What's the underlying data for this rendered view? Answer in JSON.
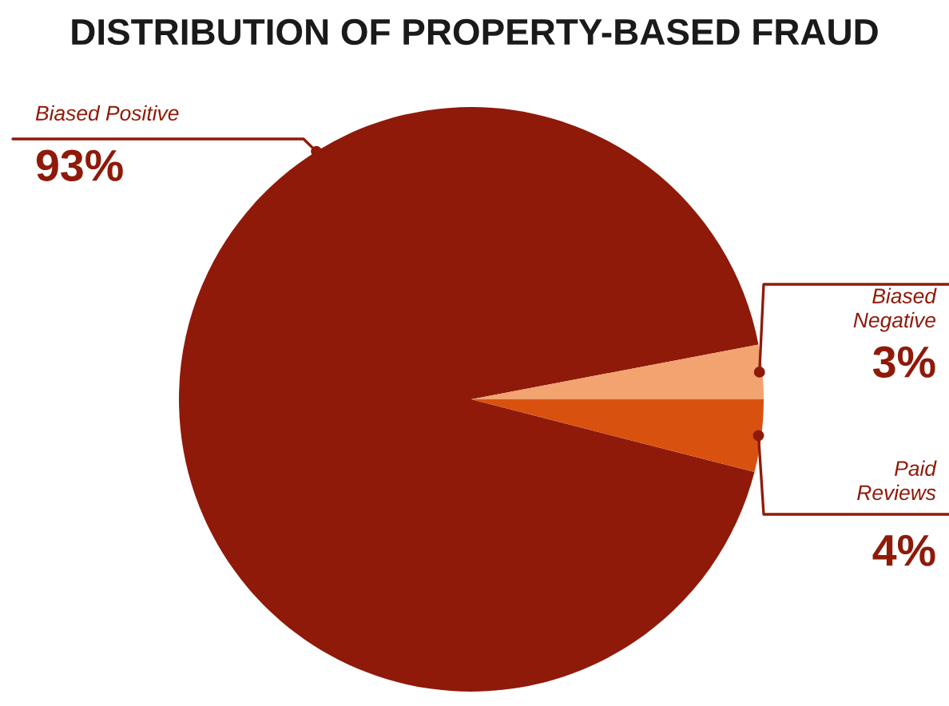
{
  "chart_data": {
    "type": "pie",
    "title": "DISTRIBUTION OF PROPERTY-BASED FRAUD",
    "categories": [
      "Biased Positive",
      "Biased Negative",
      "Paid Reviews"
    ],
    "values": [
      93,
      3,
      4
    ],
    "colors": [
      "#8f1a0a",
      "#f2a36f",
      "#d9510f"
    ],
    "value_labels": [
      "93%",
      "3%",
      "4%"
    ],
    "legend": false
  }
}
